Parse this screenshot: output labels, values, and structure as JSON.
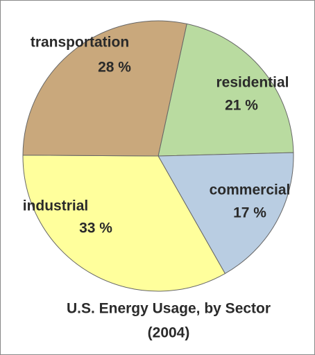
{
  "chart_data": {
    "type": "pie",
    "title": "U.S. Energy Usage, by Sector",
    "subtitle": "(2004)",
    "categories": [
      "residential",
      "commercial",
      "industrial",
      "transportation"
    ],
    "values": [
      21,
      17,
      33,
      28
    ],
    "value_labels": [
      "21 %",
      "17 %",
      "33 %",
      "28 %"
    ],
    "colors": [
      "#b9dba0",
      "#b9cde2",
      "#ffff9c",
      "#c9a87c"
    ]
  }
}
